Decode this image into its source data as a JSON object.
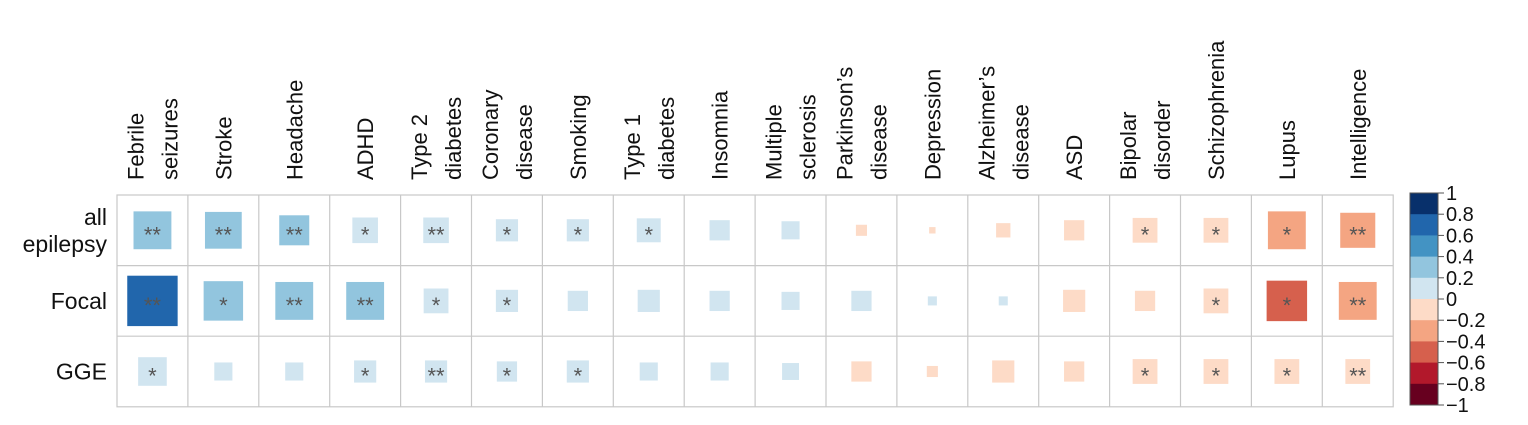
{
  "chart_data": {
    "type": "heatmap",
    "columns": [
      [
        "Febrile",
        "seizures"
      ],
      [
        "Stroke"
      ],
      [
        "Headache"
      ],
      [
        "ADHD"
      ],
      [
        "Type 2",
        "diabetes"
      ],
      [
        "Coronary",
        "disease"
      ],
      [
        "Smoking"
      ],
      [
        "Type 1",
        "diabetes"
      ],
      [
        "Insomnia"
      ],
      [
        "Multiple",
        "sclerosis"
      ],
      [
        "Parkinson’s",
        "disease"
      ],
      [
        "Depression"
      ],
      [
        "Alzheimer’s",
        "disease"
      ],
      [
        "ASD"
      ],
      [
        "Bipolar",
        "disorder"
      ],
      [
        "Schizophrenia"
      ],
      [
        "Lupus"
      ],
      [
        "Intelligence"
      ]
    ],
    "rows": [
      [
        "all",
        "epilepsy"
      ],
      [
        "Focal"
      ],
      [
        "GGE"
      ]
    ],
    "values": [
      [
        0.35,
        0.33,
        0.22,
        0.16,
        0.16,
        0.12,
        0.12,
        0.14,
        0.1,
        0.08,
        -0.03,
        -0.01,
        -0.05,
        -0.1,
        -0.15,
        -0.15,
        -0.35,
        -0.3
      ],
      [
        0.62,
        0.38,
        0.35,
        0.35,
        0.15,
        0.12,
        0.1,
        0.12,
        0.1,
        0.08,
        0.1,
        0.02,
        0.02,
        -0.12,
        -0.1,
        -0.15,
        -0.4,
        -0.35
      ],
      [
        0.2,
        0.08,
        0.08,
        0.12,
        0.12,
        0.1,
        0.12,
        0.08,
        0.08,
        0.07,
        -0.1,
        -0.03,
        -0.12,
        -0.1,
        -0.15,
        -0.15,
        -0.15,
        -0.15
      ]
    ],
    "significance": [
      [
        "**",
        "**",
        "**",
        "*",
        "**",
        "*",
        "*",
        "*",
        "",
        "",
        "",
        "",
        "",
        "",
        "*",
        "*",
        "*",
        "**"
      ],
      [
        "**",
        "*",
        "**",
        "**",
        "*",
        "*",
        "",
        "",
        "",
        "",
        "",
        "",
        "",
        "",
        "",
        "*",
        "*",
        "**"
      ],
      [
        "*",
        "",
        "",
        "*",
        "**",
        "*",
        "*",
        "",
        "",
        "",
        "",
        "",
        "",
        "",
        "*",
        "*",
        "*",
        "**"
      ]
    ],
    "colorbar": {
      "min": -1,
      "max": 1,
      "tick_labels": [
        "1",
        "0.8",
        "0.6",
        "0.4",
        "0.2",
        "0",
        "−0.2",
        "−0.4",
        "−0.6",
        "−0.8",
        "−1"
      ],
      "colors": [
        "#08306b",
        "#2166ac",
        "#4393c3",
        "#92c5de",
        "#d1e5f0",
        "#fddbc7",
        "#f4a582",
        "#d6604d",
        "#b2182b",
        "#67001f"
      ]
    },
    "grid": true
  }
}
